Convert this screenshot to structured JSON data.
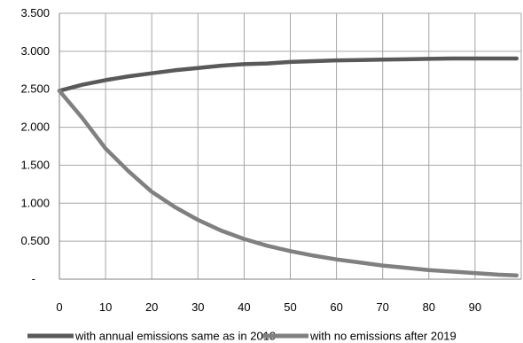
{
  "chart_data": {
    "type": "line",
    "title": "",
    "xlabel": "",
    "ylabel": "",
    "xlim": [
      0,
      100
    ],
    "ylim": [
      0,
      3.5
    ],
    "x_ticks": [
      0,
      10,
      20,
      30,
      40,
      50,
      60,
      70,
      80,
      90
    ],
    "x_tick_labels": [
      "0",
      "10",
      "20",
      "30",
      "40",
      "50",
      "60",
      "70",
      "80",
      "90"
    ],
    "y_ticks": [
      0,
      0.5,
      1.0,
      1.5,
      2.0,
      2.5,
      3.0,
      3.5
    ],
    "y_tick_labels": [
      "-",
      "0.500",
      "1.000",
      "1.500",
      "2.000",
      "2.500",
      "3.000",
      "3.500"
    ],
    "grid": true,
    "legend_position": "bottom",
    "x": [
      0,
      5,
      10,
      15,
      20,
      25,
      30,
      35,
      40,
      45,
      50,
      55,
      60,
      65,
      70,
      75,
      80,
      85,
      90,
      95,
      99
    ],
    "series": [
      {
        "name": "with annual emissions same as in 2019",
        "color": "#595959",
        "values": [
          2.48,
          2.56,
          2.62,
          2.67,
          2.71,
          2.75,
          2.78,
          2.81,
          2.83,
          2.84,
          2.86,
          2.87,
          2.88,
          2.885,
          2.89,
          2.895,
          2.9,
          2.905,
          2.905,
          2.905,
          2.905
        ]
      },
      {
        "name": "with no emissions after 2019",
        "color": "#808080",
        "values": [
          2.48,
          2.12,
          1.72,
          1.42,
          1.15,
          0.95,
          0.78,
          0.64,
          0.53,
          0.44,
          0.37,
          0.31,
          0.26,
          0.22,
          0.18,
          0.15,
          0.12,
          0.1,
          0.08,
          0.06,
          0.05
        ]
      }
    ]
  }
}
